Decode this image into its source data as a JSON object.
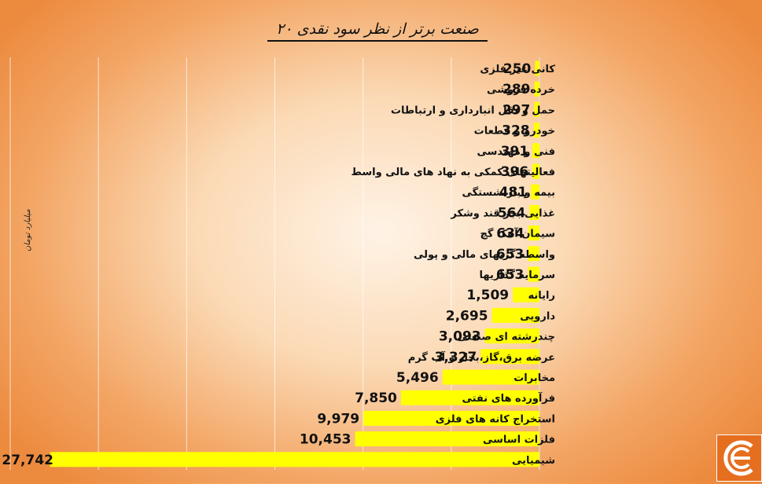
{
  "chart_data": {
    "type": "bar",
    "orientation": "horizontal",
    "title": "۲۰ صنعت برتر از نظر سود نقدی",
    "ylabel": "میلیارد تومان",
    "categories": [
      "کانی غیر فلزی",
      "خرده فروشی",
      "حمل و نقل انبارداری و ارتباطات",
      "خودرو و قطعات",
      "فنی و مهندسی",
      "فعالیتهای کمکی به نهاد های مالی واسط",
      "بیمه و بازنشستگی",
      "غذایی بجز قند وشکر",
      "سیمان آهک گچ",
      "واسطه گریهای مالی و پولی",
      "سرمایه گذاریها",
      "رایانه",
      "دارویی",
      "چندرشته ای صنعتی",
      "عرضه برق،گاز،بخار و آب گرم",
      "مخابرات",
      "فرآورده های نفتی",
      "استخراج کانه های فلزی",
      "فلزات اساسی",
      "شیمیایی"
    ],
    "values": [
      250,
      289,
      297,
      328,
      391,
      396,
      481,
      564,
      634,
      653,
      653,
      1509,
      2695,
      3093,
      3327,
      5496,
      7850,
      9979,
      10453,
      27742
    ],
    "value_labels": [
      "250",
      "289",
      "297",
      "328",
      "391",
      "396",
      "481",
      "564",
      "634",
      "653",
      "653",
      "1,509",
      "2,695",
      "3,093",
      "3,327",
      "5,496",
      "7,850",
      "9,979",
      "10,453",
      "27,742"
    ],
    "xlim": [
      0,
      30000
    ],
    "grid": true,
    "bar_color": "#ffff00"
  }
}
